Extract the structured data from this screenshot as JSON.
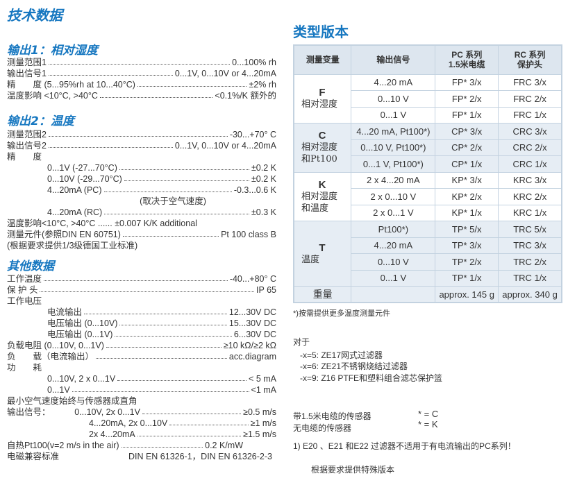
{
  "title": "技术数据",
  "left": [
    {
      "heading": "输出1：相对湿度",
      "items": [
        {
          "label": "测量范围1",
          "value": "0...100% rh",
          "dots": true
        },
        {
          "label": "输出信号1",
          "value": "0...1V, 0...10V or 4...20mA",
          "dots": true
        },
        {
          "label": "精　　度  (5...95%rh at 10...40°C)",
          "value": "±2% rh",
          "dots": true
        },
        {
          "label": "温度影响 <10°C, >40°C",
          "value": "<0.1%/K 额外的",
          "dots": true
        }
      ]
    },
    {
      "heading": "输出2：温度",
      "items": [
        {
          "label": "测量范围2",
          "value": "-30...+70° C",
          "dots": true
        },
        {
          "label": "输出信号2",
          "value": "0...1V, 0...10V or 4...20mA",
          "dots": true
        },
        {
          "label": "精　　度",
          "value": "",
          "dots": false
        },
        {
          "label": "0...1V (-27...70°C)",
          "value": "±0.2  K",
          "dots": true,
          "indent": 1
        },
        {
          "label": "0...10V (-29...70°C)",
          "value": "±0.2  K",
          "dots": true,
          "indent": 1
        },
        {
          "label": "4...20mA (PC)",
          "value": "-0.3...0.6  K",
          "dots": true,
          "indent": 1
        },
        {
          "label": "(取决于空气速度)",
          "value": "",
          "dots": false,
          "note": true
        },
        {
          "label": "4...20mA (RC)",
          "value": "±0.3 K",
          "dots": true,
          "indent": 1
        },
        {
          "label": "温度影响<10°C, >40°C ...... ±0.007 K/K additional",
          "value": "",
          "dots": false
        },
        {
          "label": "测量元件(参照DIN EN 60751)",
          "value": "Pt 100 class B",
          "dots": true
        },
        {
          "label": "(根据要求提供1/3级德国工业标准)",
          "value": "",
          "dots": false
        }
      ]
    },
    {
      "heading": "其他数据",
      "items": [
        {
          "label": "工作温度",
          "value": "-40...+80° C",
          "dots": true
        },
        {
          "label": "保  护  头",
          "value": "IP 65",
          "dots": true
        },
        {
          "label": "工作电压",
          "value": "",
          "dots": false
        },
        {
          "label": "电流输出",
          "value": "12...30V DC",
          "dots": true,
          "indent": 1
        },
        {
          "label": "电压输出 (0...10V)",
          "value": "15...30V DC",
          "dots": true,
          "indent": 1
        },
        {
          "label": "电压输出 (0...1V)",
          "value": "6...30V DC",
          "dots": true,
          "indent": 1
        },
        {
          "label": "负载电阻 (0...10V, 0...1V)",
          "value": "≥10 kΩ/≥2 kΩ",
          "dots": true
        },
        {
          "label": "负　　载（电流输出）",
          "value": "acc.diagram",
          "dots": true
        },
        {
          "label": "功　　耗",
          "value": "",
          "dots": false
        },
        {
          "label": "0...10V, 2 x 0...1V",
          "value": "< 5 mA",
          "dots": true,
          "indent": 1
        },
        {
          "label": "0...1V",
          "value": "<1 mA",
          "dots": true,
          "indent": 1
        },
        {
          "label": "最小空气速度始终与传感器成直角",
          "value": "",
          "dots": false
        },
        {
          "label": "输出信号：　　　 0...10V, 2x 0...1V",
          "value": "≥0.5 m/s",
          "dots": true
        },
        {
          "label": "4...20mA, 2x 0...10V",
          "value": "≥1 m/s",
          "dots": true,
          "indent": 2
        },
        {
          "label": "2x 4...20mA",
          "value": "≥1.5 m/s",
          "dots": true,
          "indent": 2
        },
        {
          "label": "自热Pt100(v=2 m/s in the air)",
          "value": "0.2 K/mW",
          "dots": true,
          "short": true
        },
        {
          "label": "电磁兼容标准",
          "value": "DIN EN 61326-1，DIN EN 61326-2-3",
          "dots": false,
          "spread": true
        }
      ]
    }
  ],
  "right": {
    "title": "类型版本",
    "headers": [
      "测量变量",
      "输出信号",
      "PC 系列\n1.5米电缆",
      "RC 系列\n保护头"
    ],
    "groups": [
      {
        "code": "F",
        "name": "相对湿度",
        "shade": false,
        "rows": [
          [
            "4...20 mA",
            "FP* 3/x",
            "FRC 3/x"
          ],
          [
            "0...10 V",
            "FP* 2/x",
            "FRC 2/x"
          ],
          [
            "0...1 V",
            "FP* 1/x",
            "FRC 1/x"
          ]
        ]
      },
      {
        "code": "C",
        "name": "相对湿度和Pt100",
        "shade": true,
        "rows": [
          [
            "4...20 mA, Pt100*)",
            "CP* 3/x",
            "CRC 3/x"
          ],
          [
            "0...10 V, Pt100*)",
            "CP* 2/x",
            "CRC 2/x"
          ],
          [
            "0...1 V, Pt100*)",
            "CP* 1/x",
            "CRC 1/x"
          ]
        ]
      },
      {
        "code": "K",
        "name": "相对湿度和温度",
        "shade": false,
        "rows": [
          [
            "2 x 4...20 mA",
            "KP* 3/x",
            "KRC 3/x"
          ],
          [
            "2 x 0...10 V",
            "KP* 2/x",
            "KRC 2/x"
          ],
          [
            "2 x 0...1 V",
            "KP* 1/x",
            "KRC 1/x"
          ]
        ]
      },
      {
        "code": "T",
        "name": "温度",
        "shade": true,
        "rows": [
          [
            "Pt100*)",
            "TP* 5/x",
            "TRC 5/x"
          ],
          [
            "4...20 mA",
            "TP* 3/x",
            "TRC 3/x"
          ],
          [
            "0...10 V",
            "TP* 2/x",
            "TRC 2/x"
          ],
          [
            "0...1 V",
            "TP* 1/x",
            "TRC 1/x"
          ]
        ]
      }
    ],
    "weight": {
      "label": "重量",
      "pc": "approx. 145 g",
      "rc": "approx. 340 g"
    },
    "footnote": "*)按需提供更多温度测量元件",
    "for_label": "对于",
    "options": [
      "-x=5:  ZE17网式过滤器",
      "-x=6:  ZE21不锈钢烧结过滤器",
      "-x=9:  Z16 PTFE和塑料组合滤芯保护篮"
    ],
    "cable": {
      "with": "带1.5米电缆的传感器",
      "without": "无电缆的传感器",
      "with_code": "* = C",
      "without_code": "* = K"
    },
    "note1": "1)   E20   、E21    和E22   过滤器不适用于有电流输出的PC系列！",
    "special": "根据要求提供特殊版本"
  }
}
